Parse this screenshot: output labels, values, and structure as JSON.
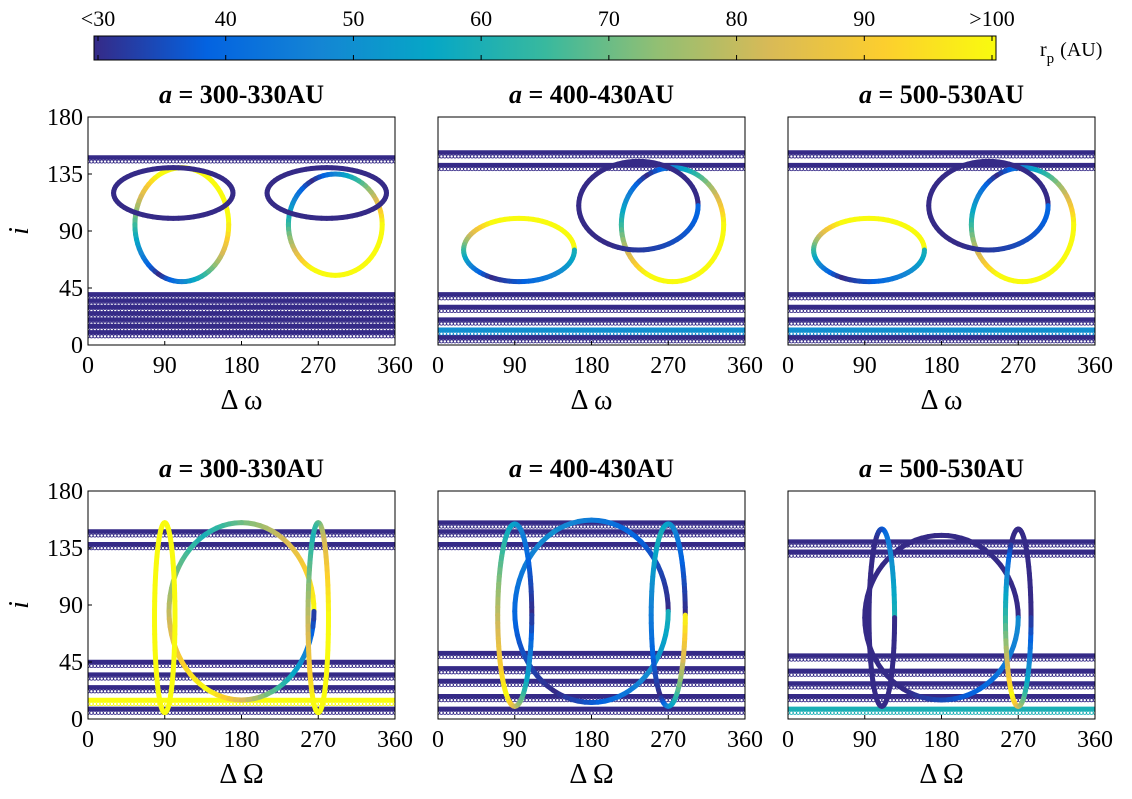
{
  "colorbar": {
    "ticks": [
      "<30",
      "40",
      "50",
      "60",
      "70",
      "80",
      "90",
      ">100"
    ],
    "label_main": "r",
    "label_sub": "p",
    "label_unit": "(AU)",
    "colormap": "parula",
    "colors": [
      "#352a87",
      "#0363e1",
      "#1485d4",
      "#06a7c6",
      "#38b99e",
      "#92bf73",
      "#d9ba56",
      "#fcce2e",
      "#f9fb0e"
    ]
  },
  "chart_data": [
    {
      "type": "scatter",
      "title_var": "a",
      "title_rest": " = 300-330AU",
      "xlabel": "Δ ω",
      "ylabel": "i",
      "xlim": [
        0,
        360
      ],
      "ylim": [
        0,
        180
      ],
      "xticks": [
        "0",
        "90",
        "180",
        "270",
        "360"
      ],
      "yticks": [
        "180",
        "135",
        "90",
        "45",
        "0"
      ],
      "show_ylabel": true,
      "series": [
        {
          "kind": "band",
          "y": [
            148
          ],
          "color_values": [
            30
          ]
        },
        {
          "kind": "band",
          "y": [
            40,
            35,
            30,
            25,
            20,
            15,
            10
          ],
          "color_values": [
            30,
            30,
            30,
            30,
            30,
            30,
            30
          ]
        },
        {
          "kind": "loop",
          "center": [
            110,
            95
          ],
          "radius": [
            55,
            45
          ],
          "color_values": [
            100,
            100,
            30,
            100
          ]
        },
        {
          "kind": "loop",
          "center": [
            290,
            95
          ],
          "radius": [
            55,
            40
          ],
          "color_values": [
            100,
            30,
            100,
            100
          ]
        },
        {
          "kind": "loop",
          "center": [
            100,
            120
          ],
          "radius": [
            70,
            20
          ],
          "color_values": [
            30,
            30,
            30,
            30
          ]
        },
        {
          "kind": "loop",
          "center": [
            280,
            120
          ],
          "radius": [
            70,
            20
          ],
          "color_values": [
            30,
            30,
            30,
            30
          ]
        }
      ]
    },
    {
      "type": "scatter",
      "title_var": "a",
      "title_rest": " = 400-430AU",
      "xlabel": "Δ ω",
      "ylabel": "i",
      "xlim": [
        0,
        360
      ],
      "ylim": [
        0,
        180
      ],
      "xticks": [
        "0",
        "90",
        "180",
        "270",
        "360"
      ],
      "yticks": [
        "180",
        "135",
        "90",
        "45",
        "0"
      ],
      "show_ylabel": false,
      "series": [
        {
          "kind": "band",
          "y": [
            152,
            142
          ],
          "color_values": [
            30,
            30
          ]
        },
        {
          "kind": "band",
          "y": [
            40,
            30,
            20,
            12,
            6
          ],
          "color_values": [
            30,
            30,
            30,
            50,
            30
          ]
        },
        {
          "kind": "loop",
          "center": [
            95,
            75
          ],
          "radius": [
            65,
            25
          ],
          "color_values": [
            100,
            100,
            30,
            60
          ]
        },
        {
          "kind": "loop",
          "center": [
            275,
            95
          ],
          "radius": [
            60,
            45
          ],
          "color_values": [
            100,
            30,
            100,
            100
          ]
        },
        {
          "kind": "loop",
          "center": [
            235,
            110
          ],
          "radius": [
            70,
            35
          ],
          "color_values": [
            30,
            30,
            30,
            40
          ]
        }
      ]
    },
    {
      "type": "scatter",
      "title_var": "a",
      "title_rest": " = 500-530AU",
      "xlabel": "Δ ω",
      "ylabel": "i",
      "xlim": [
        0,
        360
      ],
      "ylim": [
        0,
        180
      ],
      "xticks": [
        "0",
        "90",
        "180",
        "270",
        "360"
      ],
      "yticks": [
        "180",
        "135",
        "90",
        "45",
        "0"
      ],
      "show_ylabel": false,
      "series": [
        {
          "kind": "band",
          "y": [
            152,
            142
          ],
          "color_values": [
            30,
            30
          ]
        },
        {
          "kind": "band",
          "y": [
            40,
            30,
            20,
            12,
            6
          ],
          "color_values": [
            30,
            30,
            30,
            50,
            30
          ]
        },
        {
          "kind": "loop",
          "center": [
            95,
            75
          ],
          "radius": [
            65,
            25
          ],
          "color_values": [
            100,
            100,
            30,
            60
          ]
        },
        {
          "kind": "loop",
          "center": [
            275,
            95
          ],
          "radius": [
            60,
            45
          ],
          "color_values": [
            100,
            30,
            100,
            100
          ]
        },
        {
          "kind": "loop",
          "center": [
            235,
            110
          ],
          "radius": [
            70,
            35
          ],
          "color_values": [
            30,
            30,
            30,
            40
          ]
        }
      ]
    },
    {
      "type": "scatter",
      "title_var": "a",
      "title_rest": " = 300-330AU",
      "xlabel": "Δ Ω",
      "ylabel": "i",
      "xlim": [
        0,
        360
      ],
      "ylim": [
        0,
        180
      ],
      "xticks": [
        "0",
        "90",
        "180",
        "270",
        "360"
      ],
      "yticks": [
        "180",
        "135",
        "90",
        "45",
        "0"
      ],
      "show_ylabel": true,
      "series": [
        {
          "kind": "band",
          "y": [
            148,
            138
          ],
          "color_values": [
            30,
            30
          ]
        },
        {
          "kind": "band",
          "y": [
            45,
            35,
            25,
            15,
            8
          ],
          "color_values": [
            30,
            30,
            30,
            100,
            30
          ]
        },
        {
          "kind": "loop",
          "center": [
            180,
            85
          ],
          "radius": [
            85,
            70
          ],
          "color_values": [
            100,
            60,
            100,
            30
          ]
        },
        {
          "kind": "loop",
          "center": [
            90,
            80
          ],
          "radius": [
            12,
            75
          ],
          "color_values": [
            100,
            100,
            100,
            100
          ]
        },
        {
          "kind": "loop",
          "center": [
            270,
            80
          ],
          "radius": [
            12,
            75
          ],
          "color_values": [
            100,
            60,
            100,
            100
          ]
        }
      ]
    },
    {
      "type": "scatter",
      "title_var": "a",
      "title_rest": " = 400-430AU",
      "xlabel": "Δ Ω",
      "ylabel": "i",
      "xlim": [
        0,
        360
      ],
      "ylim": [
        0,
        180
      ],
      "xticks": [
        "0",
        "90",
        "180",
        "270",
        "360"
      ],
      "yticks": [
        "180",
        "135",
        "90",
        "45",
        "0"
      ],
      "show_ylabel": false,
      "series": [
        {
          "kind": "band",
          "y": [
            155,
            148,
            138
          ],
          "color_values": [
            30,
            30,
            30
          ]
        },
        {
          "kind": "band",
          "y": [
            52,
            40,
            30,
            18,
            8
          ],
          "color_values": [
            30,
            30,
            30,
            30,
            30
          ]
        },
        {
          "kind": "loop",
          "center": [
            180,
            85
          ],
          "radius": [
            90,
            72
          ],
          "color_values": [
            30,
            50,
            30,
            60
          ]
        },
        {
          "kind": "loop",
          "center": [
            90,
            82
          ],
          "radius": [
            20,
            72
          ],
          "color_values": [
            30,
            60,
            100,
            30
          ]
        },
        {
          "kind": "loop",
          "center": [
            270,
            82
          ],
          "radius": [
            20,
            72
          ],
          "color_values": [
            30,
            60,
            30,
            100
          ]
        }
      ]
    },
    {
      "type": "scatter",
      "title_var": "a",
      "title_rest": " = 500-530AU",
      "xlabel": "Δ Ω",
      "ylabel": "i",
      "xlim": [
        0,
        360
      ],
      "ylim": [
        0,
        180
      ],
      "xticks": [
        "0",
        "90",
        "180",
        "270",
        "360"
      ],
      "yticks": [
        "180",
        "135",
        "90",
        "45",
        "0"
      ],
      "show_ylabel": false,
      "series": [
        {
          "kind": "band",
          "y": [
            140,
            132
          ],
          "color_values": [
            30,
            30
          ]
        },
        {
          "kind": "band",
          "y": [
            50,
            38,
            28,
            18,
            8
          ],
          "color_values": [
            30,
            30,
            30,
            30,
            60
          ]
        },
        {
          "kind": "loop",
          "center": [
            180,
            80
          ],
          "radius": [
            90,
            65
          ],
          "color_values": [
            30,
            30,
            30,
            50
          ]
        },
        {
          "kind": "loop",
          "center": [
            110,
            80
          ],
          "radius": [
            15,
            70
          ],
          "color_values": [
            60,
            30,
            30,
            30
          ]
        },
        {
          "kind": "loop",
          "center": [
            270,
            80
          ],
          "radius": [
            15,
            70
          ],
          "color_values": [
            30,
            30,
            100,
            30
          ]
        }
      ]
    }
  ]
}
